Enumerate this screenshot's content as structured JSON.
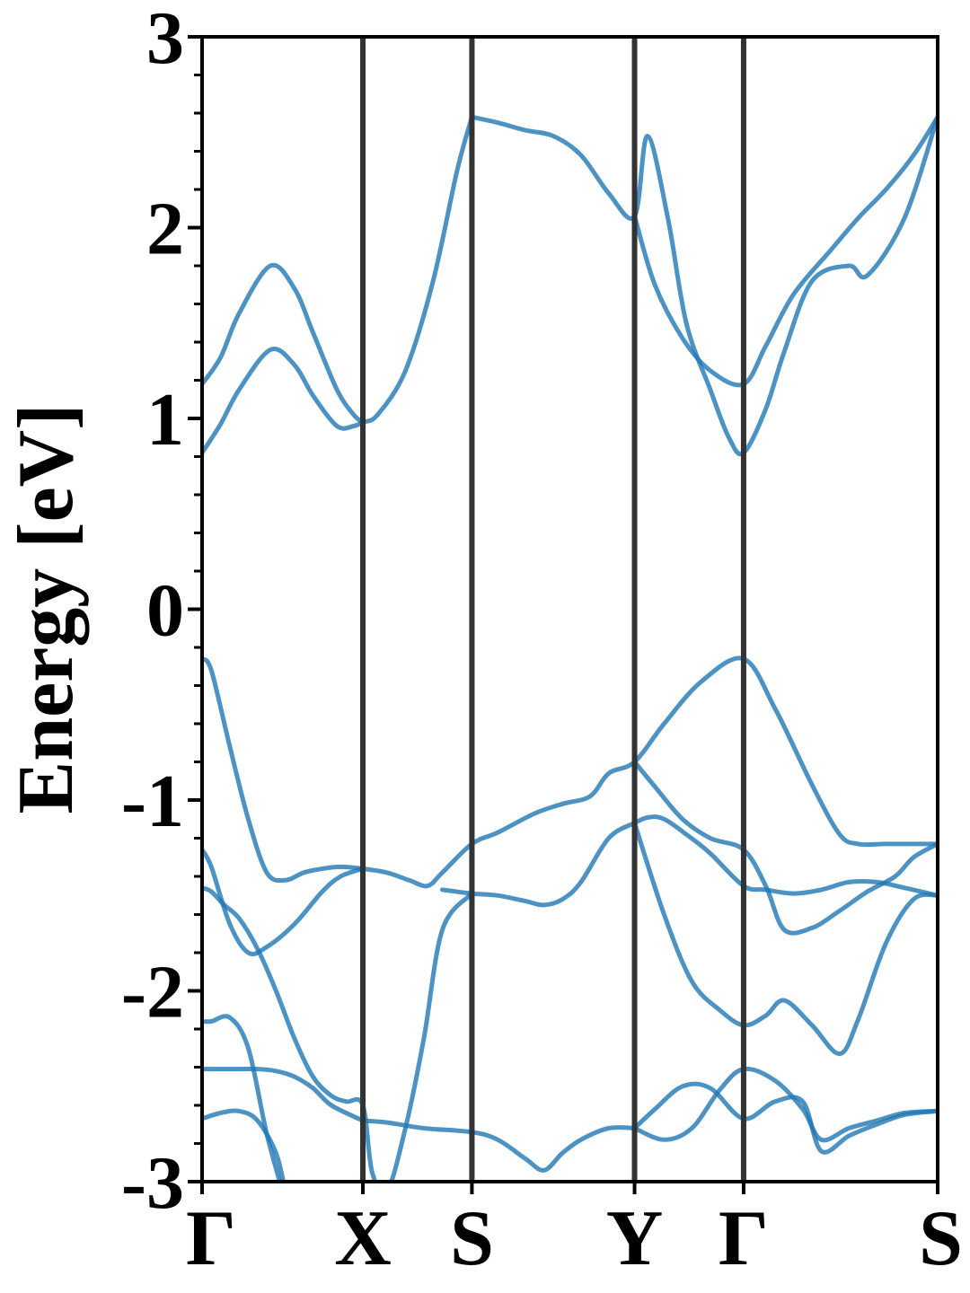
{
  "chart_data": {
    "type": "line",
    "title": "",
    "xlabel": "",
    "ylabel": "Energy [eV]",
    "ylim": [
      -3,
      3
    ],
    "y_ticks": [
      "-3",
      "-2",
      "-1",
      "0",
      "1",
      "2",
      "3"
    ],
    "y_tick_values": [
      -3,
      -2,
      -1,
      0,
      1,
      2,
      3
    ],
    "y_minor_step": 0.2,
    "xlim": [
      0,
      3.98
    ],
    "high_symmetry_points": [
      {
        "label": "Γ",
        "x": 0.0
      },
      {
        "label": "X",
        "x": 0.87
      },
      {
        "label": "S",
        "x": 1.46
      },
      {
        "label": "Y",
        "x": 2.34
      },
      {
        "label": "Γ",
        "x": 2.93
      },
      {
        "label": "S",
        "x": 3.98
      }
    ],
    "grid": false,
    "series_color": "#1f77b4",
    "divider_color": "#333333",
    "series": [
      {
        "x": [
          0,
          0.1,
          0.2,
          0.37,
          0.5,
          0.6,
          0.73,
          0.82,
          0.87,
          0.95,
          1.1,
          1.25,
          1.38,
          1.46
        ],
        "values": [
          0.82,
          0.97,
          1.15,
          1.36,
          1.28,
          1.12,
          0.96,
          0.96,
          0.98,
          1.02,
          1.25,
          1.72,
          2.3,
          2.58
        ]
      },
      {
        "x": [
          0,
          0.1,
          0.2,
          0.37,
          0.5,
          0.6,
          0.73,
          0.82,
          0.87
        ],
        "values": [
          1.18,
          1.32,
          1.55,
          1.8,
          1.68,
          1.45,
          1.15,
          1.02,
          0.98
        ]
      },
      {
        "x": [
          1.46,
          1.6,
          1.75,
          1.9,
          2.05,
          2.2,
          2.34,
          2.41,
          2.52,
          2.62,
          2.75,
          2.85,
          2.93,
          3.05,
          3.15,
          3.3,
          3.5,
          3.6,
          3.8,
          3.98
        ],
        "values": [
          2.58,
          2.55,
          2.51,
          2.48,
          2.38,
          2.18,
          2.06,
          2.48,
          2.05,
          1.5,
          1.15,
          0.9,
          0.82,
          1.05,
          1.35,
          1.72,
          1.8,
          1.75,
          2.05,
          2.58
        ]
      },
      {
        "x": [
          2.34,
          2.45,
          2.6,
          2.75,
          2.93,
          3.05,
          3.2,
          3.4,
          3.55,
          3.7,
          3.85,
          3.98
        ],
        "values": [
          2.06,
          1.7,
          1.42,
          1.25,
          1.18,
          1.38,
          1.65,
          1.88,
          2.05,
          2.2,
          2.38,
          2.58
        ]
      },
      {
        "x": [
          0,
          0.05,
          0.15,
          0.25,
          0.35,
          0.45,
          0.55,
          0.65,
          0.75,
          0.87,
          1.0,
          1.12,
          1.22,
          1.3,
          1.46,
          1.6,
          1.8,
          1.95,
          2.1,
          2.2,
          2.34,
          2.5,
          2.7,
          2.93,
          3.1,
          3.3,
          3.45,
          3.55,
          3.7,
          3.85,
          3.98
        ],
        "values": [
          -0.26,
          -0.32,
          -0.72,
          -1.1,
          -1.38,
          -1.42,
          -1.38,
          -1.36,
          -1.35,
          -1.36,
          -1.38,
          -1.42,
          -1.45,
          -1.38,
          -1.23,
          -1.17,
          -1.07,
          -1.02,
          -0.98,
          -0.86,
          -0.8,
          -0.6,
          -0.38,
          -0.26,
          -0.52,
          -0.92,
          -1.18,
          -1.23,
          -1.23,
          -1.23,
          -1.23
        ]
      },
      {
        "x": [
          0,
          0.05,
          0.15,
          0.25,
          0.35,
          0.5,
          0.65,
          0.75,
          0.87
        ],
        "values": [
          -1.26,
          -1.35,
          -1.65,
          -1.8,
          -1.77,
          -1.65,
          -1.48,
          -1.4,
          -1.36
        ]
      },
      {
        "x": [
          1.3,
          1.46,
          1.6,
          1.75,
          1.85,
          1.95,
          2.05,
          2.2,
          2.34,
          2.42,
          2.5,
          2.62,
          2.75,
          2.93,
          3.05,
          3.2,
          3.35,
          3.5,
          3.65,
          3.8,
          3.98
        ],
        "values": [
          -1.47,
          -1.49,
          -1.5,
          -1.53,
          -1.55,
          -1.52,
          -1.43,
          -1.2,
          -1.12,
          -1.09,
          -1.1,
          -1.18,
          -1.28,
          -1.45,
          -1.47,
          -1.49,
          -1.47,
          -1.43,
          -1.43,
          -1.46,
          -1.5
        ]
      },
      {
        "x": [
          2.34,
          2.45,
          2.6,
          2.75,
          2.93,
          3.05,
          3.15,
          3.3,
          3.45,
          3.6,
          3.75,
          3.85,
          3.98
        ],
        "values": [
          -0.8,
          -0.93,
          -1.1,
          -1.2,
          -1.26,
          -1.45,
          -1.68,
          -1.67,
          -1.58,
          -1.48,
          -1.4,
          -1.3,
          -1.23
        ]
      },
      {
        "x": [
          0,
          0.05,
          0.12,
          0.2,
          0.3,
          0.4,
          0.5,
          0.6,
          0.7,
          0.78,
          0.87,
          0.92,
          1.0,
          1.1,
          1.2,
          1.3,
          1.46
        ],
        "values": [
          -1.46,
          -1.48,
          -1.55,
          -1.62,
          -1.78,
          -2.0,
          -2.25,
          -2.45,
          -2.55,
          -2.58,
          -2.6,
          -2.95,
          -3.05,
          -2.72,
          -2.25,
          -1.68,
          -1.49
        ]
      },
      {
        "x": [
          2.34,
          2.5,
          2.65,
          2.8,
          2.93,
          3.05,
          3.15,
          3.3,
          3.45,
          3.55,
          3.7,
          3.85,
          3.98
        ],
        "values": [
          -1.12,
          -1.6,
          -1.95,
          -2.1,
          -2.18,
          -2.13,
          -2.05,
          -2.18,
          -2.33,
          -2.15,
          -1.75,
          -1.52,
          -1.5
        ]
      },
      {
        "x": [
          0,
          0.1,
          0.2,
          0.3,
          0.4,
          0.5,
          0.6,
          0.7,
          0.87
        ],
        "values": [
          -2.41,
          -2.41,
          -2.41,
          -2.41,
          -2.42,
          -2.45,
          -2.51,
          -2.6,
          -2.68
        ]
      },
      {
        "x": [
          0.87,
          1.0,
          1.2,
          1.46,
          1.6,
          1.75,
          1.85,
          1.95,
          2.05,
          2.2,
          2.34
        ],
        "values": [
          -2.68,
          -2.69,
          -2.72,
          -2.74,
          -2.78,
          -2.88,
          -2.94,
          -2.85,
          -2.78,
          -2.72,
          -2.72
        ]
      },
      {
        "x": [
          0,
          0.05,
          0.15,
          0.25,
          0.35,
          0.45
        ],
        "values": [
          -2.16,
          -2.16,
          -2.14,
          -2.3,
          -2.75,
          -3.1
        ]
      },
      {
        "x": [
          0,
          0.1,
          0.2,
          0.3,
          0.4,
          0.45
        ],
        "values": [
          -2.67,
          -2.64,
          -2.63,
          -2.68,
          -2.85,
          -3.05
        ]
      },
      {
        "x": [
          2.34,
          2.45,
          2.6,
          2.75,
          2.93,
          3.1,
          3.25,
          3.35,
          3.5,
          3.65,
          3.8,
          3.98
        ],
        "values": [
          -2.72,
          -2.62,
          -2.5,
          -2.51,
          -2.67,
          -2.58,
          -2.58,
          -2.84,
          -2.76,
          -2.7,
          -2.65,
          -2.63
        ]
      },
      {
        "x": [
          2.34,
          2.5,
          2.65,
          2.8,
          2.93,
          3.1,
          3.25,
          3.35,
          3.5,
          3.65,
          3.8,
          3.98
        ],
        "values": [
          -2.72,
          -2.78,
          -2.72,
          -2.52,
          -2.41,
          -2.47,
          -2.62,
          -2.78,
          -2.72,
          -2.68,
          -2.64,
          -2.63
        ]
      }
    ]
  }
}
